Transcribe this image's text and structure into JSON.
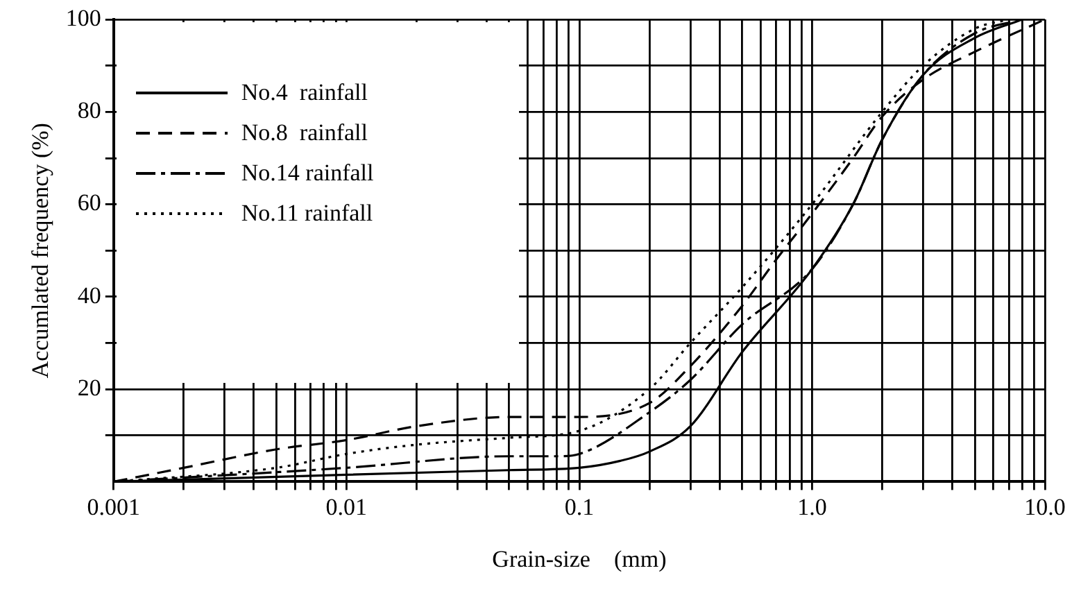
{
  "chart_data": {
    "type": "line",
    "xlabel": "Grain-size　(mm)",
    "ylabel": "Accumlated frequency (%)",
    "log": "x",
    "xlim": [
      0.001,
      10
    ],
    "ylim": [
      0,
      100
    ],
    "xticks": [
      {
        "value": 0.001,
        "label": "0.001"
      },
      {
        "value": 0.002,
        "label": null
      },
      {
        "value": 0.003,
        "label": null
      },
      {
        "value": 0.004,
        "label": null
      },
      {
        "value": 0.005,
        "label": null
      },
      {
        "value": 0.006,
        "label": null
      },
      {
        "value": 0.007,
        "label": null
      },
      {
        "value": 0.008,
        "label": null
      },
      {
        "value": 0.009,
        "label": null
      },
      {
        "value": 0.01,
        "label": "0.01"
      },
      {
        "value": 0.02,
        "label": null
      },
      {
        "value": 0.03,
        "label": null
      },
      {
        "value": 0.04,
        "label": null
      },
      {
        "value": 0.05,
        "label": null
      },
      {
        "value": 0.06,
        "label": null
      },
      {
        "value": 0.07,
        "label": null
      },
      {
        "value": 0.08,
        "label": null
      },
      {
        "value": 0.09,
        "label": null
      },
      {
        "value": 0.1,
        "label": "0.1"
      },
      {
        "value": 0.2,
        "label": null
      },
      {
        "value": 0.3,
        "label": null
      },
      {
        "value": 0.4,
        "label": null
      },
      {
        "value": 0.5,
        "label": null
      },
      {
        "value": 0.6,
        "label": null
      },
      {
        "value": 0.7,
        "label": null
      },
      {
        "value": 0.8,
        "label": null
      },
      {
        "value": 0.9,
        "label": null
      },
      {
        "value": 1,
        "label": "1.0"
      },
      {
        "value": 2,
        "label": null
      },
      {
        "value": 3,
        "label": null
      },
      {
        "value": 4,
        "label": null
      },
      {
        "value": 5,
        "label": null
      },
      {
        "value": 6,
        "label": null
      },
      {
        "value": 7,
        "label": null
      },
      {
        "value": 8,
        "label": null
      },
      {
        "value": 9,
        "label": null
      },
      {
        "value": 10,
        "label": "10.0"
      }
    ],
    "yticks": [
      {
        "value": 10,
        "label": null
      },
      20,
      {
        "value": 30,
        "label": null
      },
      40,
      {
        "value": 50,
        "label": null
      },
      60,
      {
        "value": 70,
        "label": null
      },
      80,
      {
        "value": 90,
        "label": null
      },
      100
    ],
    "grid": true,
    "legend": "top left",
    "marker": "none",
    "series": [
      {
        "name": "No.4  rainfall",
        "color": "#000000",
        "line_style": "solid",
        "x": [
          0.001,
          0.01,
          0.05,
          0.1,
          0.15,
          0.2,
          0.3,
          0.5,
          1,
          1.5,
          2,
          3,
          5,
          8
        ],
        "values": [
          0,
          1.5,
          2.5,
          3,
          4.5,
          6.5,
          12,
          28,
          46,
          60,
          74,
          88,
          96,
          100
        ]
      },
      {
        "name": "No.8  rainfall",
        "color": "#000000",
        "line_style": "dashed",
        "x": [
          0.001,
          0.002,
          0.005,
          0.01,
          0.02,
          0.05,
          0.1,
          0.2,
          0.3,
          0.5,
          0.7,
          1,
          1.5,
          2,
          3,
          5,
          10
        ],
        "values": [
          0,
          3,
          7,
          9,
          12,
          14,
          14,
          17,
          25,
          38,
          48,
          58,
          70,
          79,
          87,
          93,
          100
        ]
      },
      {
        "name": "No.14 rainfall",
        "color": "#000000",
        "line_style": "dashdot",
        "x": [
          0.001,
          0.01,
          0.05,
          0.08,
          0.1,
          0.2,
          0.3,
          0.5,
          1,
          1.5,
          2,
          3,
          5,
          8
        ],
        "values": [
          0,
          3,
          5.5,
          5.5,
          6,
          15,
          22,
          34,
          46,
          60,
          74,
          88,
          97,
          100
        ]
      },
      {
        "name": "No.11 rainfall",
        "color": "#000000",
        "line_style": "dotted",
        "x": [
          0.001,
          0.005,
          0.01,
          0.02,
          0.05,
          0.1,
          0.2,
          0.3,
          0.5,
          1,
          2,
          3,
          5,
          7
        ],
        "values": [
          0,
          3,
          6,
          8,
          9.5,
          11,
          20,
          30,
          42,
          60,
          80,
          90,
          98,
          100
        ]
      }
    ]
  }
}
